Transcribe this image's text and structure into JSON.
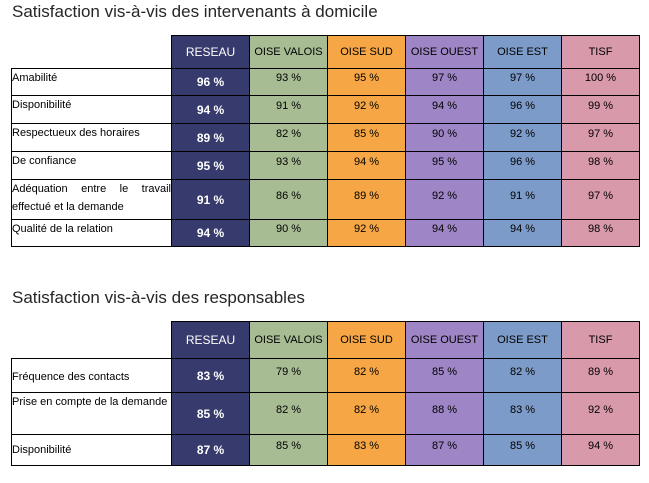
{
  "colors": {
    "reseau": "#363a6c",
    "oise_valois": "#a8bc94",
    "oise_sud": "#f6a645",
    "oise_ouest": "#9e86c6",
    "oise_est": "#7d9bc8",
    "tisf": "#d899aa"
  },
  "columns": [
    "RESEAU",
    "OISE VALOIS",
    "OISE SUD",
    "OISE OUEST",
    "OISE EST",
    "TISF"
  ],
  "section1": {
    "title": "Satisfaction vis-à-vis des intervenants à domicile",
    "rows": [
      {
        "label": "Amabilité",
        "values": [
          "96 %",
          "93 %",
          "95 %",
          "97 %",
          "97 %",
          "100 %"
        ]
      },
      {
        "label": "Disponibilité",
        "values": [
          "94 %",
          "91 %",
          "92 %",
          "94 %",
          "96 %",
          "99 %"
        ]
      },
      {
        "label": "Respectueux des horaires",
        "values": [
          "89 %",
          "82 %",
          "85 %",
          "90 %",
          "92 %",
          "97 %"
        ]
      },
      {
        "label": "De confiance",
        "values": [
          "95 %",
          "93 %",
          "94 %",
          "95 %",
          "96 %",
          "98 %"
        ]
      },
      {
        "label": "Adéquation entre le travail effectué et la demande",
        "values": [
          "91 %",
          "86 %",
          "89 %",
          "92 %",
          "91 %",
          "97 %"
        ]
      },
      {
        "label": "Qualité de la relation",
        "values": [
          "94 %",
          "90 %",
          "92 %",
          "94 %",
          "94 %",
          "98 %"
        ]
      }
    ]
  },
  "section2": {
    "title": "Satisfaction vis-à-vis des responsables",
    "rows": [
      {
        "label": "Fréquence des contacts",
        "values": [
          "83 %",
          "79 %",
          "82 %",
          "85 %",
          "82 %",
          "89 %"
        ]
      },
      {
        "label": "Prise en compte de la demande",
        "values": [
          "85 %",
          "82 %",
          "82 %",
          "88 %",
          "83 %",
          "92 %"
        ]
      },
      {
        "label": "Disponibilité",
        "values": [
          "87 %",
          "85 %",
          "83 %",
          "87 %",
          "85 %",
          "94 %"
        ]
      }
    ]
  }
}
